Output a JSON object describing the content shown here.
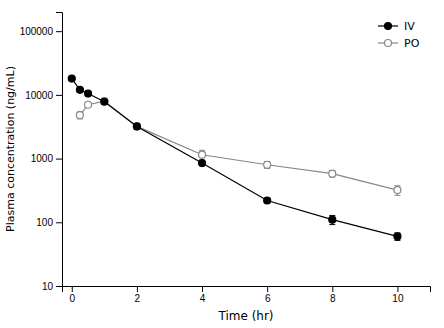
{
  "chart_data": {
    "type": "line",
    "x_label": "Time (hr)",
    "y_label": "Plasma concentration (ng/mL)",
    "log": "y",
    "legend": "upper-right",
    "xlim": [
      -0.3,
      11
    ],
    "xticks": [
      0,
      2,
      4,
      6,
      8,
      10
    ],
    "ylim": [
      10,
      200000
    ],
    "yticks": [
      10,
      100,
      1000,
      10000,
      100000
    ],
    "series": [
      {
        "name": "IV",
        "color": "#000000",
        "marker": "circle",
        "line_style": "solid",
        "x": [
          0,
          0.25,
          0.5,
          1,
          2,
          4,
          6,
          8,
          10
        ],
        "values": [
          18000,
          12000,
          10500,
          7800,
          3200,
          850,
          220,
          110,
          60
        ],
        "errors": [
          1500,
          1000,
          900,
          600,
          300,
          80,
          20,
          18,
          8
        ]
      },
      {
        "name": "PO",
        "color": "#888888",
        "marker": "open-circle",
        "line_style": "solid",
        "x": [
          0.25,
          0.5,
          1,
          2,
          4,
          6,
          8,
          10
        ],
        "values": [
          4800,
          7000,
          8000,
          3200,
          1150,
          800,
          580,
          320
        ],
        "errors": [
          600,
          500,
          500,
          300,
          200,
          100,
          70,
          55
        ]
      }
    ]
  }
}
